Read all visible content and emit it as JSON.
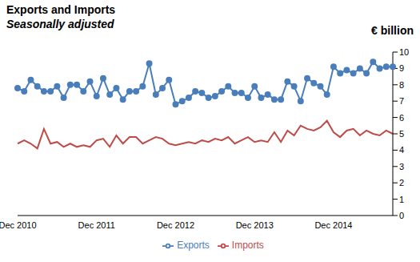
{
  "chart_data": {
    "type": "line",
    "title": "Exports and Imports",
    "subtitle": "Seasonally adjusted",
    "y_label": "€ billion",
    "categories": [
      "Dec 2010",
      null,
      null,
      null,
      null,
      null,
      null,
      null,
      null,
      null,
      null,
      null,
      "Dec 2011",
      null,
      null,
      null,
      null,
      null,
      null,
      null,
      null,
      null,
      null,
      null,
      "Dec 2012",
      null,
      null,
      null,
      null,
      null,
      null,
      null,
      null,
      null,
      null,
      null,
      "Dec 2013",
      null,
      null,
      null,
      null,
      null,
      null,
      null,
      null,
      null,
      null,
      null,
      "Dec 2014",
      null,
      null,
      null,
      null,
      null,
      null,
      null,
      null,
      null
    ],
    "series": [
      {
        "name": "Exports",
        "color": "#4a7ebb",
        "marker": "circle",
        "values": [
          7.8,
          7.6,
          8.3,
          7.9,
          7.6,
          7.6,
          7.9,
          7.2,
          8.0,
          8.0,
          7.6,
          8.2,
          7.3,
          8.4,
          7.4,
          7.8,
          7.1,
          7.6,
          7.6,
          7.9,
          9.3,
          7.4,
          7.8,
          8.3,
          6.8,
          7.0,
          7.2,
          7.6,
          7.5,
          7.2,
          7.3,
          7.6,
          7.9,
          7.5,
          7.5,
          7.2,
          7.9,
          7.2,
          7.4,
          7.1,
          7.1,
          8.2,
          7.9,
          7.0,
          8.4,
          8.1,
          7.9,
          7.4,
          9.1,
          8.7,
          8.9,
          8.7,
          9.0,
          8.7,
          9.4,
          9.0,
          9.1,
          9.1
        ]
      },
      {
        "name": "Imports",
        "color": "#be4b48",
        "marker": "none",
        "values": [
          4.4,
          4.6,
          4.4,
          4.1,
          5.3,
          4.4,
          4.5,
          4.2,
          4.4,
          4.2,
          4.3,
          4.2,
          4.6,
          4.7,
          4.2,
          4.9,
          4.4,
          4.8,
          4.8,
          4.4,
          4.6,
          4.8,
          4.7,
          4.4,
          4.3,
          4.4,
          4.5,
          4.4,
          4.6,
          4.5,
          4.7,
          4.6,
          4.8,
          4.4,
          4.6,
          4.8,
          4.5,
          4.6,
          4.5,
          5.1,
          4.5,
          5.2,
          4.9,
          5.5,
          5.3,
          5.2,
          5.4,
          5.8,
          5.1,
          4.8,
          5.2,
          5.3,
          4.9,
          5.2,
          5.0,
          4.9,
          5.2,
          5.0
        ]
      }
    ],
    "ylim": [
      0,
      10
    ],
    "yticks": [
      0,
      1,
      2,
      3,
      4,
      5,
      6,
      7,
      8,
      9,
      10
    ],
    "grid": false,
    "legend": "bottom"
  }
}
